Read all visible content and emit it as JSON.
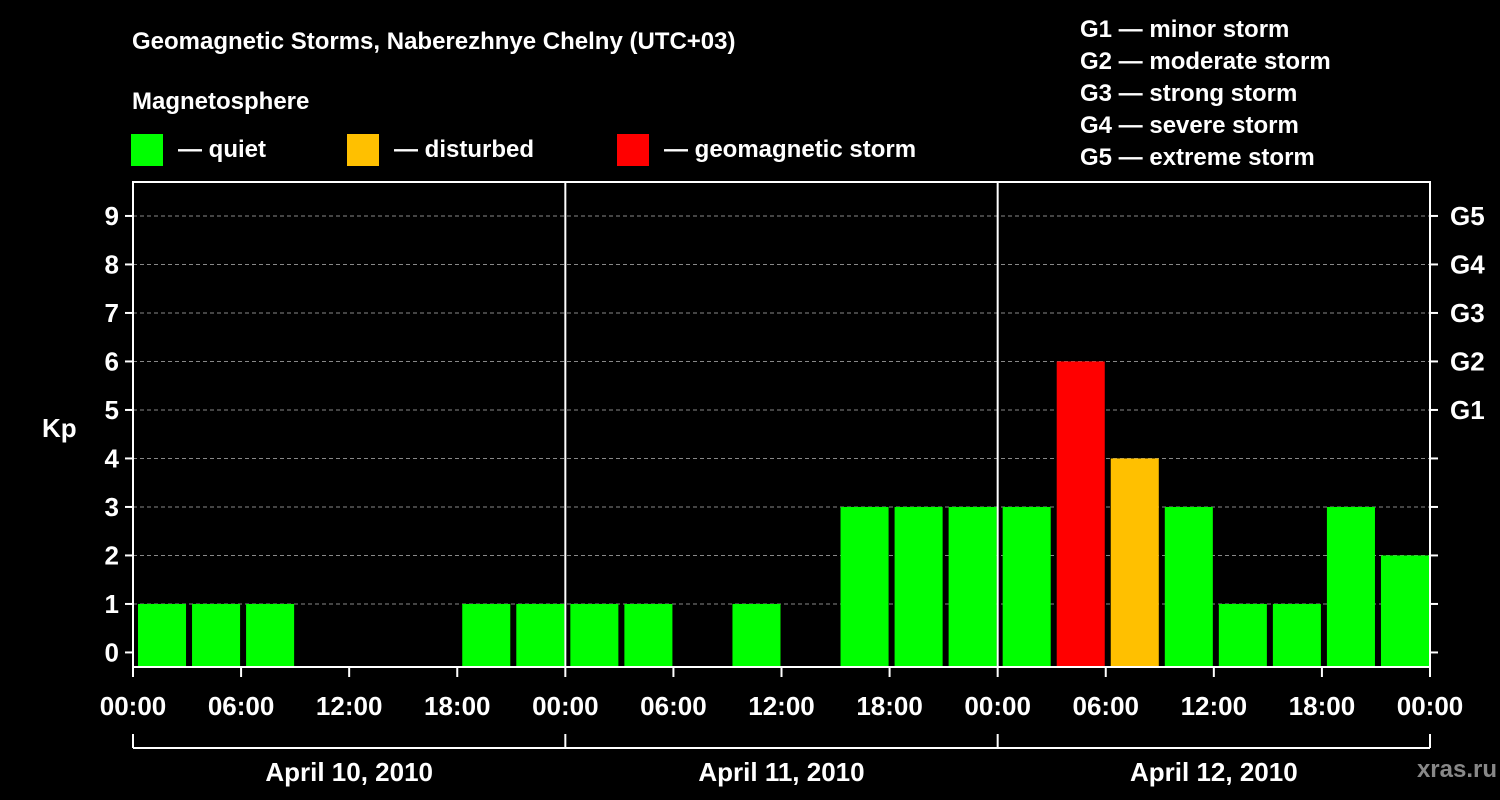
{
  "title": "Geomagnetic Storms, Naberezhnye Chelny (UTC+03)",
  "legend": {
    "heading": "Magnetosphere",
    "items": [
      {
        "label": "— quiet",
        "color": "#00ff00"
      },
      {
        "label": "— disturbed",
        "color": "#ffc000"
      },
      {
        "label": "— geomagnetic storm",
        "color": "#ff0000"
      }
    ],
    "scale": [
      "G1 — minor storm",
      "G2 — moderate storm",
      "G3 — strong storm",
      "G4 — severe storm",
      "G5 — extreme storm"
    ]
  },
  "watermark": "xras.ru",
  "chart_data": {
    "type": "bar",
    "title": "Geomagnetic Storms, Naberezhnye Chelny (UTC+03)",
    "ylabel": "Kp",
    "ylim": [
      -0.3,
      9.7
    ],
    "yticks": [
      0,
      1,
      2,
      3,
      4,
      5,
      6,
      7,
      8,
      9
    ],
    "right_ticks": [
      {
        "value": 5,
        "label": "G1"
      },
      {
        "value": 6,
        "label": "G2"
      },
      {
        "value": 7,
        "label": "G3"
      },
      {
        "value": 8,
        "label": "G4"
      },
      {
        "value": 9,
        "label": "G5"
      }
    ],
    "xtick_labels": [
      "00:00",
      "06:00",
      "12:00",
      "18:00",
      "00:00",
      "06:00",
      "12:00",
      "18:00",
      "00:00",
      "06:00",
      "12:00",
      "18:00",
      "00:00"
    ],
    "days": [
      "April 10, 2010",
      "April 11, 2010",
      "April 12, 2010"
    ],
    "grid": true,
    "colors": {
      "quiet": "#00ff00",
      "disturbed": "#ffc000",
      "storm": "#ff0000"
    },
    "values": [
      1,
      1,
      1,
      0,
      0,
      0,
      1,
      1,
      1,
      1,
      0,
      1,
      0,
      3,
      3,
      3,
      3,
      6,
      4,
      3,
      1,
      1,
      3,
      2
    ],
    "status": [
      "quiet",
      "quiet",
      "quiet",
      "quiet",
      "quiet",
      "quiet",
      "quiet",
      "quiet",
      "quiet",
      "quiet",
      "quiet",
      "quiet",
      "quiet",
      "quiet",
      "quiet",
      "quiet",
      "quiet",
      "storm",
      "disturbed",
      "quiet",
      "quiet",
      "quiet",
      "quiet",
      "quiet"
    ]
  }
}
